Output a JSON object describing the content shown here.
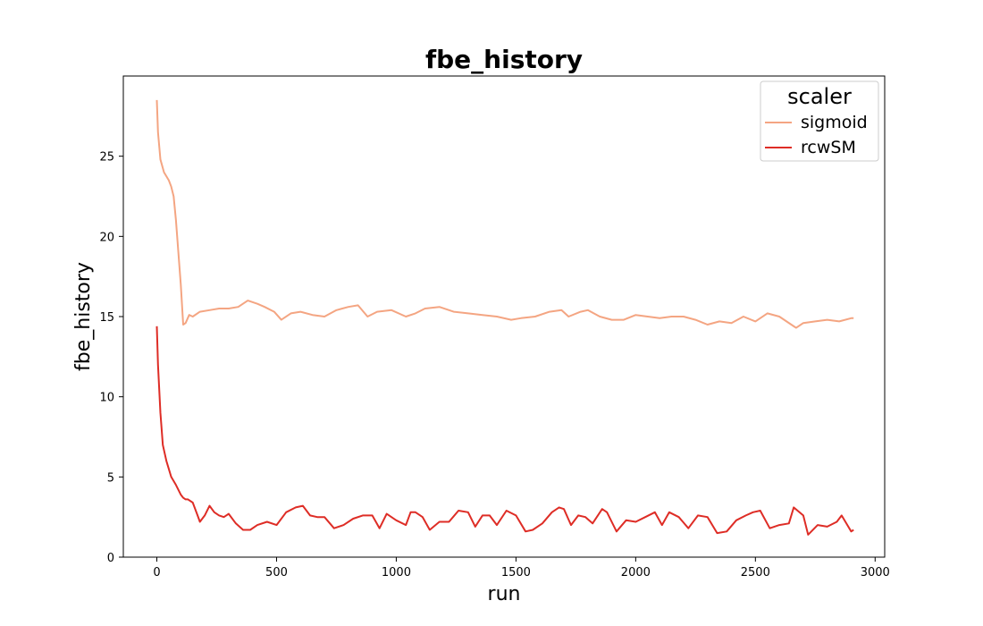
{
  "chart_data": {
    "type": "line",
    "title": "fbe_history",
    "xlabel": "run",
    "ylabel": "fbe_history",
    "xlim": [
      -140,
      3040
    ],
    "ylim": [
      0,
      30
    ],
    "xticks": [
      0,
      500,
      1000,
      1500,
      2000,
      2500,
      3000
    ],
    "yticks": [
      0,
      5,
      10,
      15,
      20,
      25
    ],
    "grid": false,
    "legend": {
      "title": "scaler",
      "placement": "top-right"
    },
    "series": [
      {
        "name": "sigmoid",
        "color": "#f4a582",
        "x": [
          0,
          5,
          15,
          30,
          50,
          60,
          70,
          80,
          90,
          100,
          110,
          120,
          135,
          150,
          180,
          220,
          260,
          300,
          340,
          380,
          420,
          450,
          490,
          520,
          560,
          600,
          650,
          700,
          750,
          800,
          840,
          880,
          920,
          980,
          1040,
          1080,
          1120,
          1180,
          1240,
          1300,
          1360,
          1420,
          1480,
          1520,
          1580,
          1640,
          1690,
          1720,
          1770,
          1800,
          1850,
          1900,
          1950,
          2000,
          2050,
          2100,
          2150,
          2200,
          2250,
          2300,
          2350,
          2400,
          2450,
          2500,
          2550,
          2600,
          2650,
          2670,
          2700,
          2750,
          2800,
          2850,
          2900,
          2910
        ],
        "y": [
          28.5,
          26.5,
          24.8,
          24.0,
          23.5,
          23.1,
          22.5,
          21.0,
          19.0,
          17.0,
          14.5,
          14.6,
          15.1,
          15.0,
          15.3,
          15.4,
          15.5,
          15.5,
          15.6,
          16.0,
          15.8,
          15.6,
          15.3,
          14.8,
          15.2,
          15.3,
          15.1,
          15.0,
          15.4,
          15.6,
          15.7,
          15.0,
          15.3,
          15.4,
          15.0,
          15.2,
          15.5,
          15.6,
          15.3,
          15.2,
          15.1,
          15.0,
          14.8,
          14.9,
          15.0,
          15.3,
          15.4,
          15.0,
          15.3,
          15.4,
          15.0,
          14.8,
          14.8,
          15.1,
          15.0,
          14.9,
          15.0,
          15.0,
          14.8,
          14.5,
          14.7,
          14.6,
          15.0,
          14.7,
          15.2,
          15.0,
          14.5,
          14.3,
          14.6,
          14.7,
          14.8,
          14.7,
          14.9,
          14.9
        ]
      },
      {
        "name": "rcwSM",
        "color": "#de2d26",
        "x": [
          0,
          5,
          15,
          25,
          40,
          60,
          80,
          100,
          110,
          120,
          130,
          150,
          170,
          180,
          200,
          220,
          240,
          260,
          280,
          300,
          330,
          360,
          390,
          420,
          460,
          500,
          540,
          580,
          610,
          640,
          670,
          700,
          740,
          780,
          820,
          860,
          900,
          930,
          960,
          1000,
          1040,
          1060,
          1080,
          1110,
          1140,
          1180,
          1220,
          1260,
          1300,
          1330,
          1360,
          1390,
          1420,
          1460,
          1500,
          1540,
          1570,
          1610,
          1650,
          1680,
          1700,
          1730,
          1760,
          1790,
          1820,
          1860,
          1880,
          1920,
          1960,
          2000,
          2040,
          2080,
          2110,
          2140,
          2180,
          2220,
          2260,
          2300,
          2340,
          2380,
          2420,
          2460,
          2490,
          2520,
          2560,
          2600,
          2640,
          2660,
          2700,
          2720,
          2760,
          2800,
          2840,
          2860,
          2880,
          2900,
          2910
        ],
        "y": [
          14.4,
          12.0,
          9.0,
          7.0,
          6.0,
          5.0,
          4.5,
          3.9,
          3.7,
          3.6,
          3.6,
          3.4,
          2.6,
          2.2,
          2.6,
          3.2,
          2.8,
          2.6,
          2.5,
          2.7,
          2.1,
          1.7,
          1.7,
          2.0,
          2.2,
          2.0,
          2.8,
          3.1,
          3.2,
          2.6,
          2.5,
          2.5,
          1.8,
          2.0,
          2.4,
          2.6,
          2.6,
          1.8,
          2.7,
          2.3,
          2.0,
          2.8,
          2.8,
          2.5,
          1.7,
          2.2,
          2.2,
          2.9,
          2.8,
          1.9,
          2.6,
          2.6,
          2.0,
          2.9,
          2.6,
          1.6,
          1.7,
          2.1,
          2.8,
          3.1,
          3.0,
          2.0,
          2.6,
          2.5,
          2.1,
          3.0,
          2.8,
          1.6,
          2.3,
          2.2,
          2.5,
          2.8,
          2.0,
          2.8,
          2.5,
          1.8,
          2.6,
          2.5,
          1.5,
          1.6,
          2.3,
          2.6,
          2.8,
          2.9,
          1.8,
          2.0,
          2.1,
          3.1,
          2.6,
          1.4,
          2.0,
          1.9,
          2.2,
          2.6,
          2.1,
          1.6,
          1.7
        ]
      }
    ]
  }
}
